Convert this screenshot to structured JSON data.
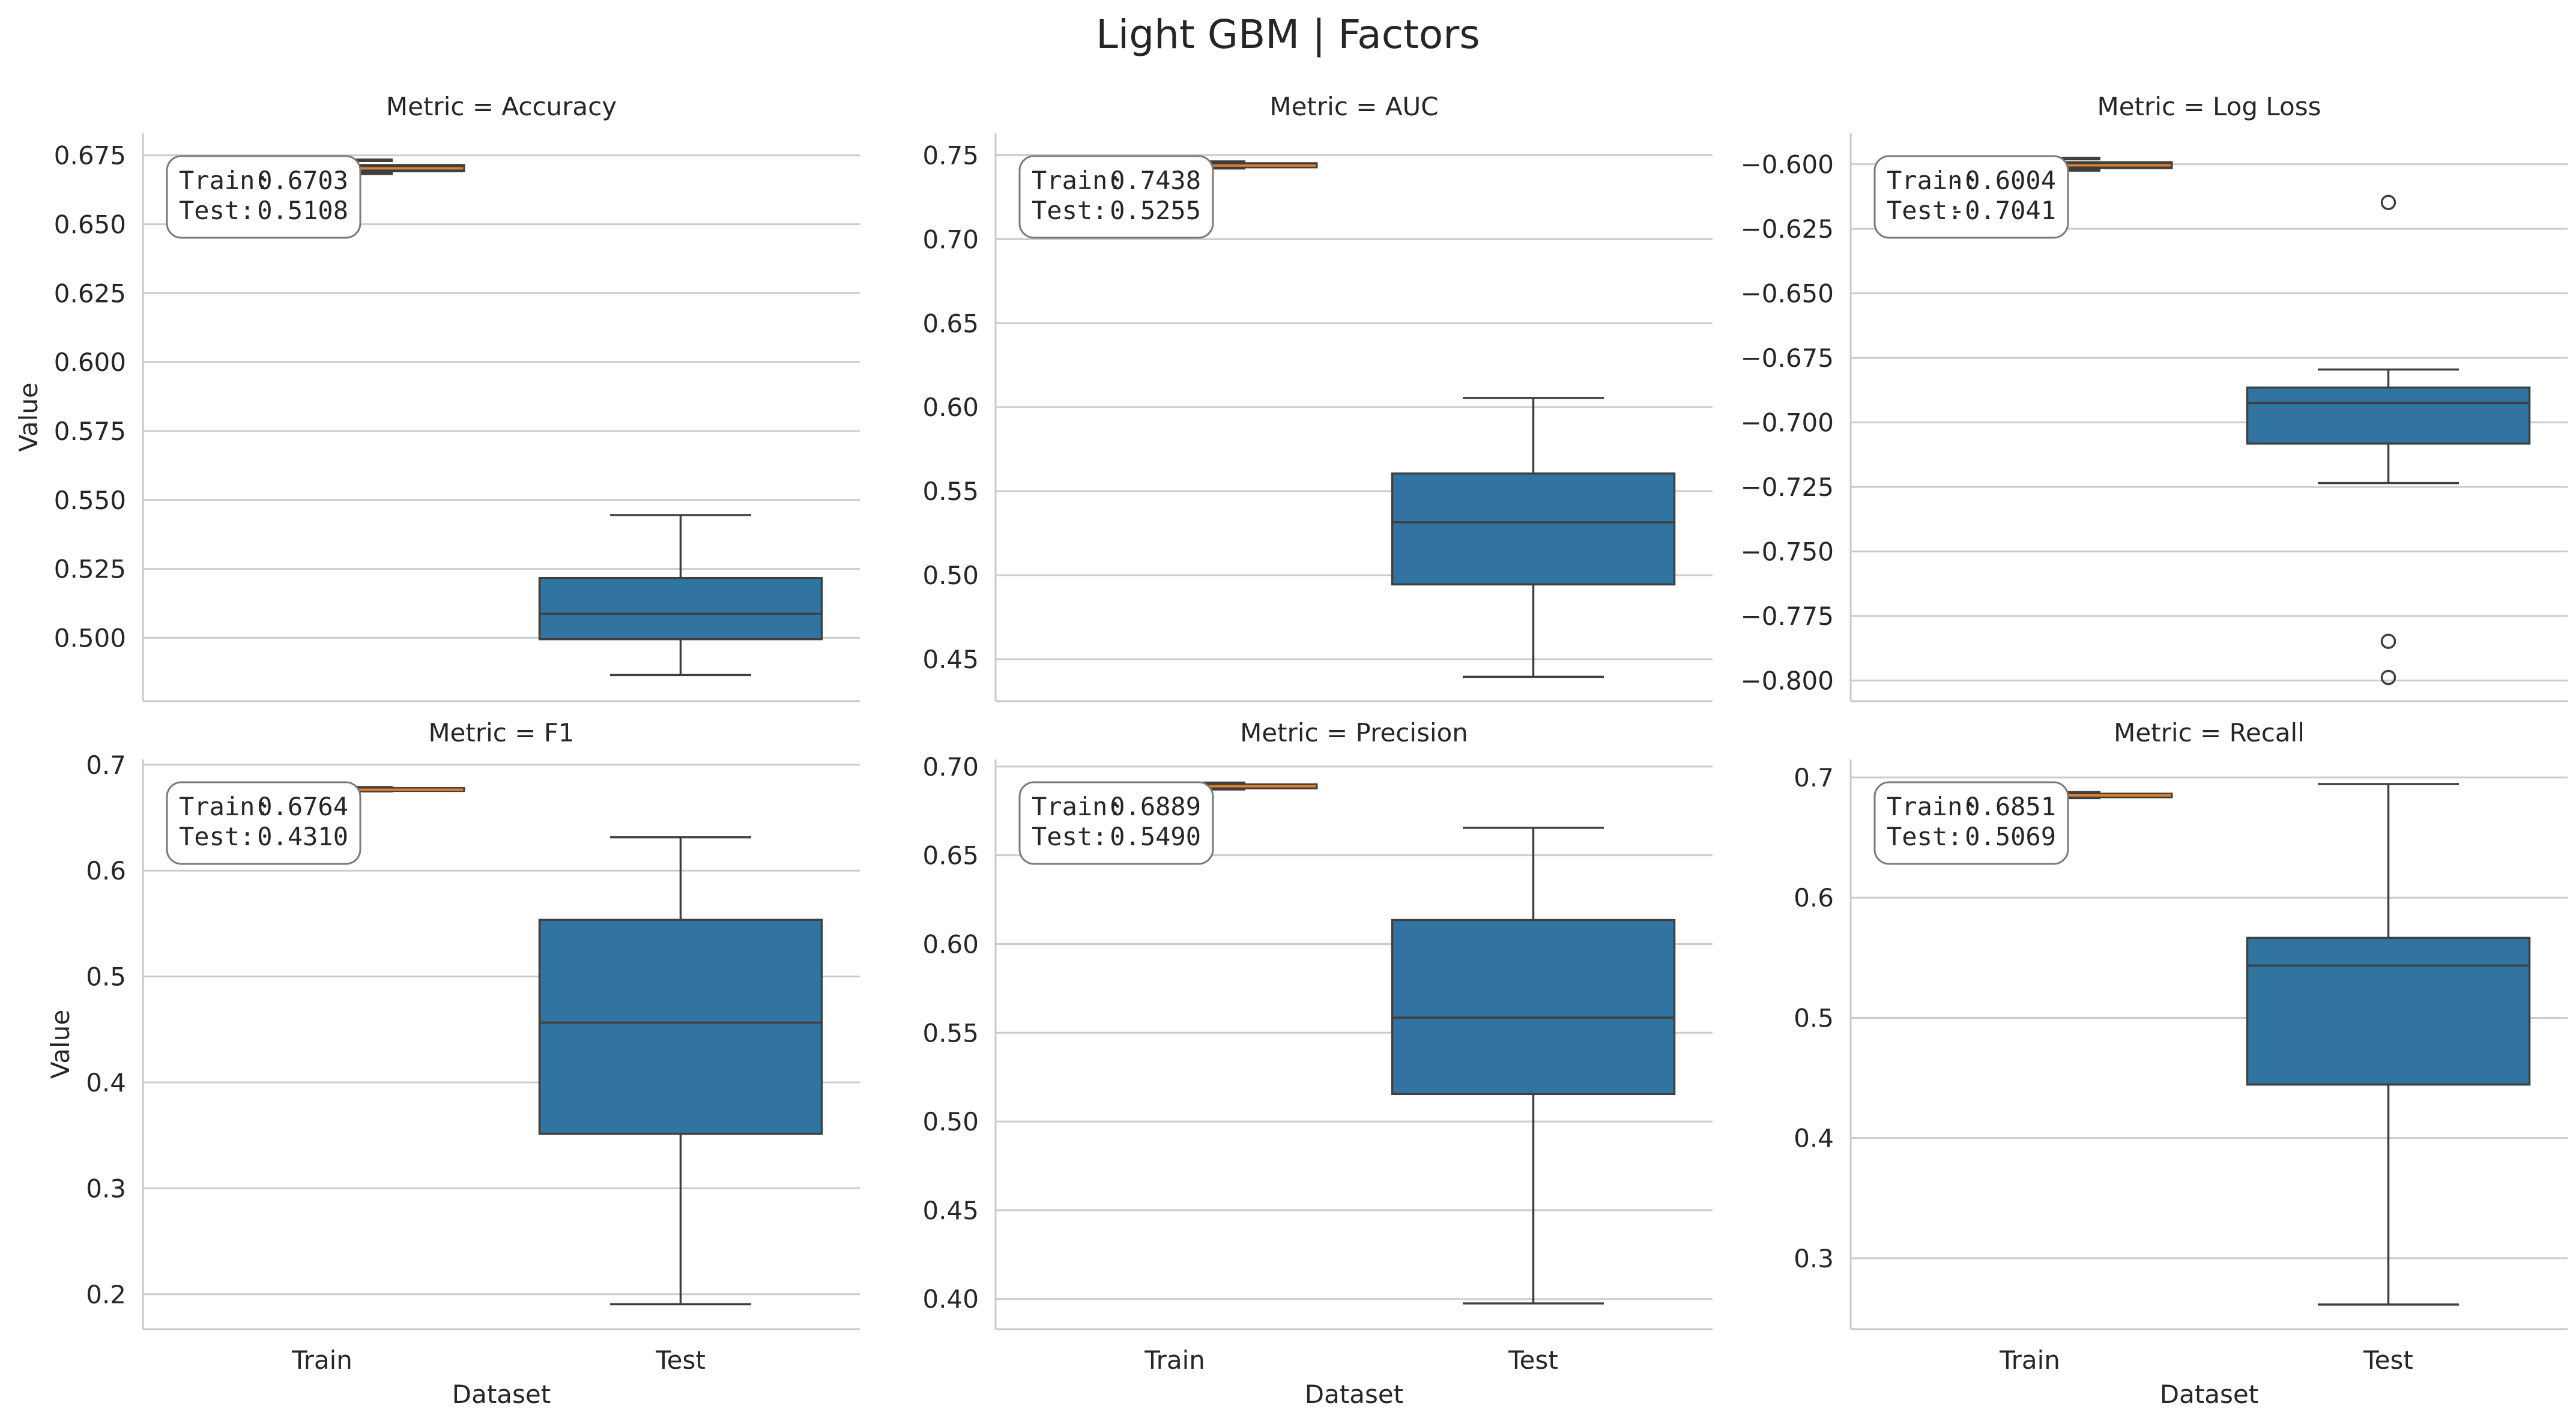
{
  "figure": {
    "title": "Light GBM | Factors",
    "x_label": "Dataset",
    "y_label": "Value"
  },
  "chart_data": [
    {
      "type": "box",
      "title": "Metric = Accuracy",
      "categories": [
        "Train",
        "Test"
      ],
      "ylim": [
        0.477,
        0.683
      ],
      "yticks": [
        0.5,
        0.525,
        0.55,
        0.575,
        0.6,
        0.625,
        0.65,
        0.675
      ],
      "ytick_labels": [
        "0.500",
        "0.525",
        "0.550",
        "0.575",
        "0.600",
        "0.625",
        "0.650",
        "0.675"
      ],
      "boxes": [
        {
          "category": "Train",
          "whisker_low": 0.6685,
          "q1": 0.6695,
          "median": 0.6703,
          "q3": 0.6712,
          "whisker_high": 0.6732,
          "outliers": []
        },
        {
          "category": "Test",
          "whisker_low": 0.4865,
          "q1": 0.4995,
          "median": 0.5087,
          "q3": 0.5217,
          "whisker_high": 0.5445,
          "outliers": []
        }
      ],
      "annotation": {
        "train_label": "Train:",
        "train_value": "0.6703",
        "test_label": "Test:",
        "test_value": "0.5108"
      }
    },
    {
      "type": "box",
      "title": "Metric = AUC",
      "categories": [
        "Train",
        "Test"
      ],
      "ylim": [
        0.425,
        0.763
      ],
      "yticks": [
        0.45,
        0.5,
        0.55,
        0.6,
        0.65,
        0.7,
        0.75
      ],
      "ytick_labels": [
        "0.45",
        "0.50",
        "0.55",
        "0.60",
        "0.65",
        "0.70",
        "0.75"
      ],
      "boxes": [
        {
          "category": "Train",
          "whisker_low": 0.7425,
          "q1": 0.7432,
          "median": 0.7438,
          "q3": 0.7447,
          "whisker_high": 0.7458,
          "outliers": []
        },
        {
          "category": "Test",
          "whisker_low": 0.4395,
          "q1": 0.4945,
          "median": 0.5315,
          "q3": 0.5605,
          "whisker_high": 0.6055,
          "outliers": []
        }
      ],
      "annotation": {
        "train_label": "Train:",
        "train_value": "0.7438",
        "test_label": "Test:",
        "test_value": "0.5255"
      }
    },
    {
      "type": "box",
      "title": "Metric = Log Loss",
      "categories": [
        "Train",
        "Test"
      ],
      "ylim": [
        -0.808,
        -0.588
      ],
      "yticks": [
        -0.8,
        -0.775,
        -0.75,
        -0.725,
        -0.7,
        -0.675,
        -0.65,
        -0.625,
        -0.6
      ],
      "ytick_labels": [
        "−0.800",
        "−0.775",
        "−0.750",
        "−0.725",
        "−0.700",
        "−0.675",
        "−0.650",
        "−0.625",
        "−0.600"
      ],
      "boxes": [
        {
          "category": "Train",
          "whisker_low": -0.6022,
          "q1": -0.6012,
          "median": -0.6004,
          "q3": -0.5995,
          "whisker_high": -0.5978,
          "outliers": []
        },
        {
          "category": "Test",
          "whisker_low": -0.7235,
          "q1": -0.7082,
          "median": -0.6925,
          "q3": -0.6865,
          "whisker_high": -0.6795,
          "outliers": [
            -0.6148,
            -0.7848,
            -0.7988
          ]
        }
      ],
      "annotation": {
        "train_label": "Train:",
        "train_value": "-0.6004",
        "test_label": "Test:",
        "test_value": "-0.7041"
      }
    },
    {
      "type": "box",
      "title": "Metric = F1",
      "categories": [
        "Train",
        "Test"
      ],
      "ylim": [
        0.167,
        0.705
      ],
      "yticks": [
        0.2,
        0.3,
        0.4,
        0.5,
        0.6,
        0.7
      ],
      "ytick_labels": [
        "0.2",
        "0.3",
        "0.4",
        "0.5",
        "0.6",
        "0.7"
      ],
      "boxes": [
        {
          "category": "Train",
          "whisker_low": 0.6755,
          "q1": 0.676,
          "median": 0.6764,
          "q3": 0.6772,
          "whisker_high": 0.6782,
          "outliers": []
        },
        {
          "category": "Test",
          "whisker_low": 0.1905,
          "q1": 0.3515,
          "median": 0.4565,
          "q3": 0.5535,
          "whisker_high": 0.6315,
          "outliers": []
        }
      ],
      "annotation": {
        "train_label": "Train:",
        "train_value": "0.6764",
        "test_label": "Test:",
        "test_value": "0.4310"
      }
    },
    {
      "type": "box",
      "title": "Metric = Precision",
      "categories": [
        "Train",
        "Test"
      ],
      "ylim": [
        0.383,
        0.704
      ],
      "yticks": [
        0.4,
        0.45,
        0.5,
        0.55,
        0.6,
        0.65,
        0.7
      ],
      "ytick_labels": [
        "0.40",
        "0.45",
        "0.50",
        "0.55",
        "0.60",
        "0.65",
        "0.70"
      ],
      "boxes": [
        {
          "category": "Train",
          "whisker_low": 0.6875,
          "q1": 0.6882,
          "median": 0.6889,
          "q3": 0.6895,
          "whisker_high": 0.6905,
          "outliers": []
        },
        {
          "category": "Test",
          "whisker_low": 0.3975,
          "q1": 0.5155,
          "median": 0.5585,
          "q3": 0.6135,
          "whisker_high": 0.6655,
          "outliers": []
        }
      ],
      "annotation": {
        "train_label": "Train:",
        "train_value": "0.6889",
        "test_label": "Test:",
        "test_value": "0.5490"
      }
    },
    {
      "type": "box",
      "title": "Metric = Recall",
      "categories": [
        "Train",
        "Test"
      ],
      "ylim": [
        0.241,
        0.715
      ],
      "yticks": [
        0.3,
        0.4,
        0.5,
        0.6,
        0.7
      ],
      "ytick_labels": [
        "0.3",
        "0.4",
        "0.5",
        "0.6",
        "0.7"
      ],
      "boxes": [
        {
          "category": "Train",
          "whisker_low": 0.6835,
          "q1": 0.6842,
          "median": 0.6851,
          "q3": 0.6858,
          "whisker_high": 0.6872,
          "outliers": []
        },
        {
          "category": "Test",
          "whisker_low": 0.2615,
          "q1": 0.4445,
          "median": 0.5435,
          "q3": 0.5665,
          "whisker_high": 0.6945,
          "outliers": []
        }
      ],
      "annotation": {
        "train_label": "Train:",
        "train_value": "0.6851",
        "test_label": "Test:",
        "test_value": "0.5069"
      }
    }
  ],
  "colors": {
    "box_fill": "#3274a1",
    "box_edge": "#3f3f3f",
    "train_median": "#e1812c",
    "grid": "#cccccc",
    "axis": "#c8c8c8",
    "text": "#262626",
    "annotation_border": "#7a7a7a"
  }
}
